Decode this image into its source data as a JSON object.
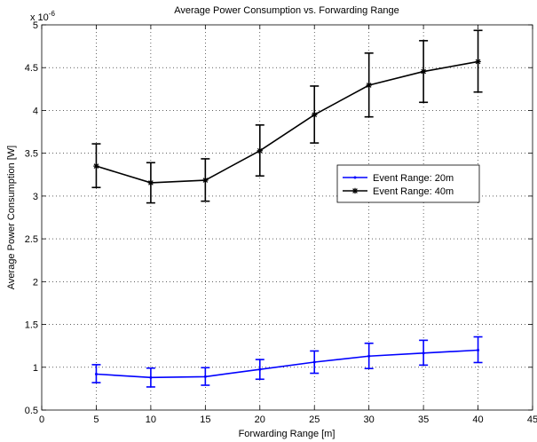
{
  "chart_data": {
    "type": "line",
    "title": "Average Power Consumption vs. Forwarding Range",
    "xlabel": "Forwarding Range [m]",
    "ylabel": "Average Power Consumption [W]",
    "y_multiplier": "x 10",
    "y_exponent": "-6",
    "xlim": [
      0,
      45
    ],
    "ylim": [
      0.5,
      5
    ],
    "xticks": [
      0,
      5,
      10,
      15,
      20,
      25,
      30,
      35,
      40,
      45
    ],
    "yticks": [
      0.5,
      1,
      1.5,
      2,
      2.5,
      3,
      3.5,
      4,
      4.5,
      5
    ],
    "xtick_labels": [
      "0",
      "5",
      "10",
      "15",
      "20",
      "25",
      "30",
      "35",
      "40",
      "45"
    ],
    "ytick_labels": [
      "0.5",
      "1",
      "1.5",
      "2",
      "2.5",
      "3",
      "3.5",
      "4",
      "4.5",
      "5"
    ],
    "grid": true,
    "legend_position": "right",
    "x": [
      5,
      10,
      15,
      20,
      25,
      30,
      35,
      40
    ],
    "series": [
      {
        "name": "Event Range: 20m",
        "color": "#0000ff",
        "marker": "point",
        "values": [
          0.92,
          0.88,
          0.89,
          0.975,
          1.06,
          1.13,
          1.165,
          1.2
        ],
        "err_low": [
          0.82,
          0.77,
          0.79,
          0.86,
          0.93,
          0.985,
          1.025,
          1.055
        ],
        "err_high": [
          1.03,
          0.99,
          0.995,
          1.09,
          1.19,
          1.28,
          1.315,
          1.355
        ]
      },
      {
        "name": "Event Range: 40m",
        "color": "#000000",
        "marker": "star",
        "values": [
          3.35,
          3.155,
          3.185,
          3.53,
          3.95,
          4.295,
          4.455,
          4.57
        ],
        "err_low": [
          3.1,
          2.92,
          2.94,
          3.235,
          3.62,
          3.925,
          4.095,
          4.215
        ],
        "err_high": [
          3.61,
          3.39,
          3.435,
          3.83,
          4.285,
          4.67,
          4.815,
          4.935
        ]
      }
    ]
  }
}
